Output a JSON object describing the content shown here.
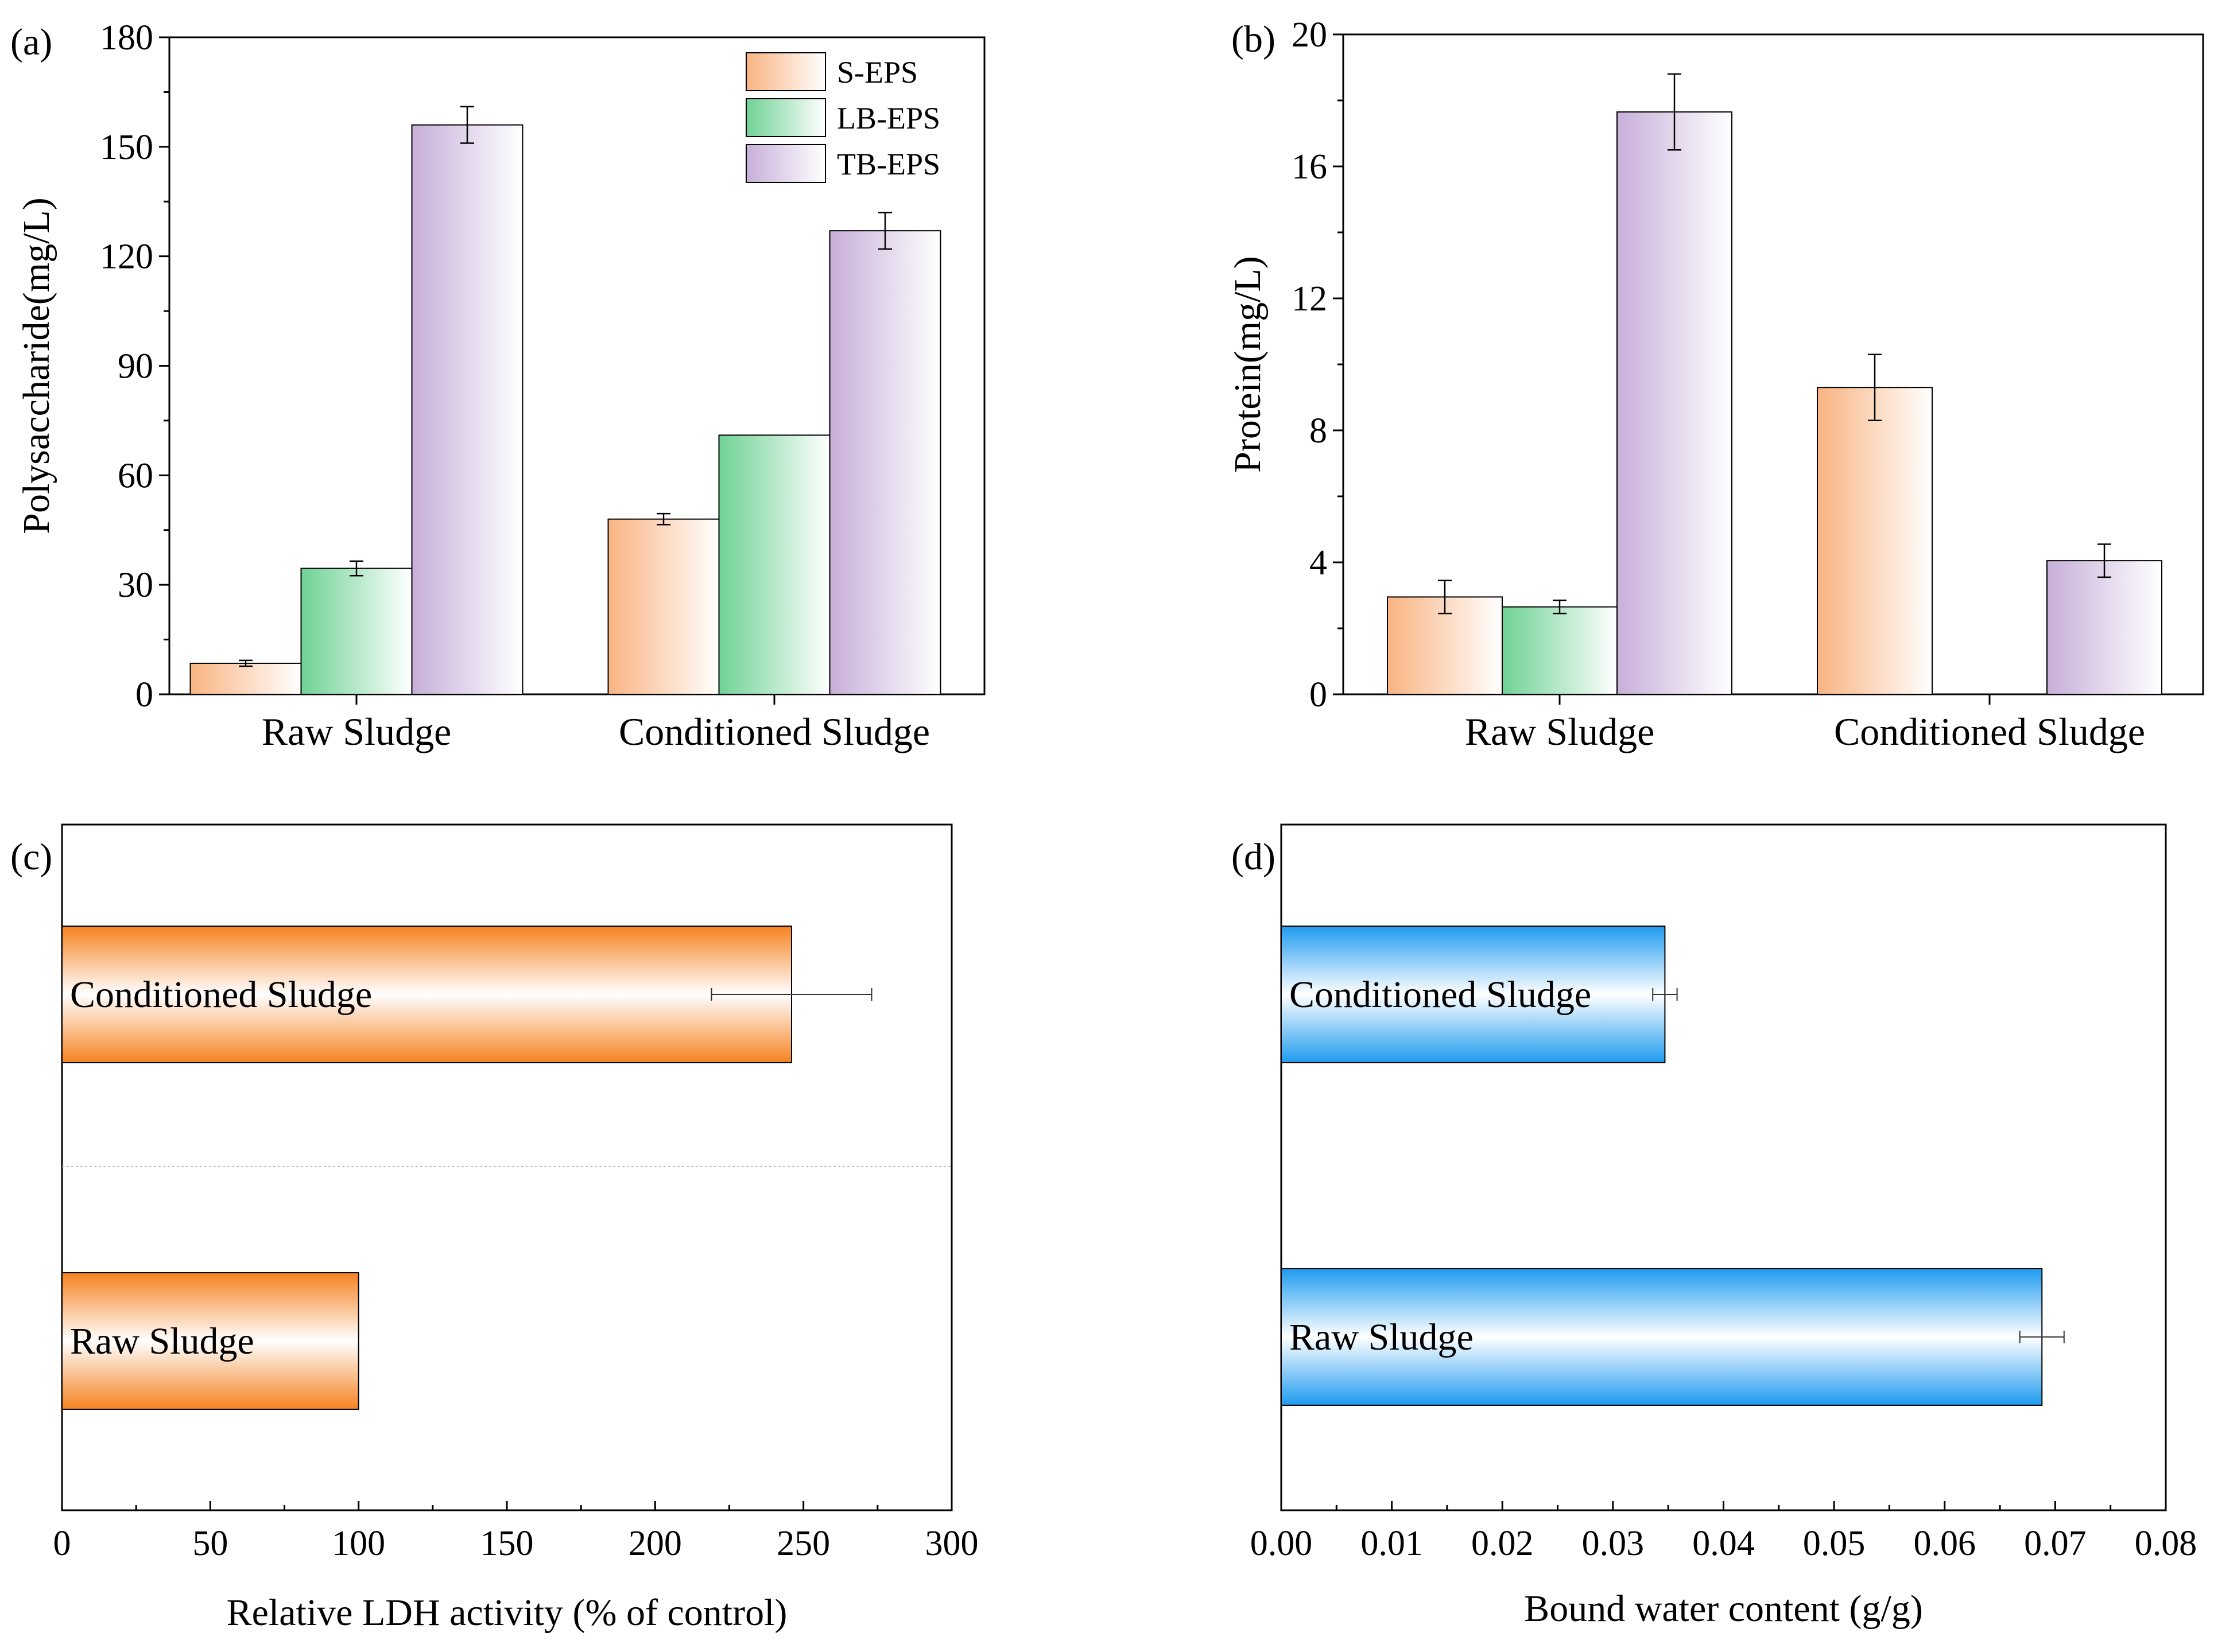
{
  "colors": {
    "s_eps": "#F9B482",
    "lb_eps": "#6FD295",
    "tb_eps": "#C7AFD9",
    "ldh": "#F58220",
    "water": "#1E9BEF"
  },
  "chart_data": [
    {
      "panel": "(a)",
      "type": "bar",
      "title": "",
      "xlabel": "",
      "ylabel": "Polysaccharide(mg/L)",
      "ylim": [
        0,
        180
      ],
      "yticks": [
        "0",
        "30",
        "60",
        "90",
        "120",
        "150",
        "180"
      ],
      "categories": [
        "Raw Sludge",
        "Conditioned Sludge"
      ],
      "series": [
        {
          "name": "S-EPS",
          "color_key": "s_eps",
          "values": [
            8.5,
            48
          ],
          "errors": [
            0.8,
            1.5
          ]
        },
        {
          "name": "LB-EPS",
          "color_key": "lb_eps",
          "values": [
            34.5,
            71
          ],
          "errors": [
            2.0,
            0
          ]
        },
        {
          "name": "TB-EPS",
          "color_key": "tb_eps",
          "values": [
            156,
            127
          ],
          "errors": [
            5.0,
            5.0
          ]
        }
      ],
      "legend": {
        "position": "top-right",
        "entries": [
          "S-EPS",
          "LB-EPS",
          "TB-EPS"
        ]
      }
    },
    {
      "panel": "(b)",
      "type": "bar",
      "title": "",
      "xlabel": "",
      "ylabel": "Protein(mg/L)",
      "ylim": [
        0,
        20
      ],
      "yticks": [
        "0",
        "4",
        "8",
        "12",
        "16",
        "20"
      ],
      "categories": [
        "Raw Sludge",
        "Conditioned Sludge"
      ],
      "series": [
        {
          "name": "S-EPS",
          "color_key": "s_eps",
          "values": [
            2.95,
            9.3
          ],
          "errors": [
            0.5,
            1.0
          ]
        },
        {
          "name": "LB-EPS",
          "color_key": "lb_eps",
          "values": [
            2.65,
            0
          ],
          "errors": [
            0.2,
            0
          ]
        },
        {
          "name": "TB-EPS",
          "color_key": "tb_eps",
          "values": [
            17.65,
            4.05
          ],
          "errors": [
            1.15,
            0.5
          ]
        }
      ]
    },
    {
      "panel": "(c)",
      "type": "bar",
      "orientation": "horizontal",
      "title": "",
      "xlabel": "Relative LDH activity (% of control)",
      "ylabel": "",
      "xlim": [
        0,
        300
      ],
      "xticks": [
        "0",
        "50",
        "100",
        "150",
        "200",
        "250",
        "300"
      ],
      "categories": [
        "Raw Sludge",
        "Conditioned Sludge"
      ],
      "values": [
        100,
        246
      ],
      "errors": [
        0,
        27
      ],
      "color_key": "ldh"
    },
    {
      "panel": "(d)",
      "type": "bar",
      "orientation": "horizontal",
      "title": "",
      "xlabel": "Bound water content (g/g)",
      "ylabel": "",
      "xlim": [
        0,
        0.08
      ],
      "xticks": [
        "0.00",
        "0.01",
        "0.02",
        "0.03",
        "0.04",
        "0.05",
        "0.06",
        "0.07",
        "0.08"
      ],
      "categories": [
        "Raw Sludge",
        "Conditioned Sludge"
      ],
      "values": [
        0.0688,
        0.0347
      ],
      "errors": [
        0.002,
        0.0011
      ],
      "color_key": "water"
    }
  ]
}
